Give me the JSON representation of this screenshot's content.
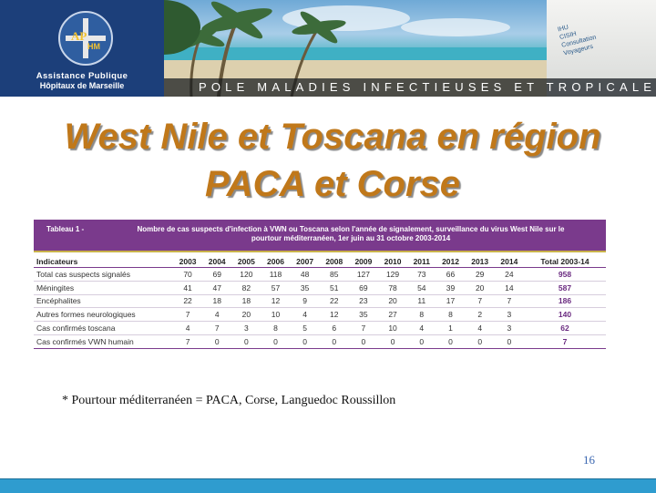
{
  "header": {
    "org_line1": "Assistance Publique",
    "org_line2": "Hôpitaux de Marseille",
    "logo_text_ap": "AP",
    "logo_text_hm": "HM",
    "banner": "POLE MALADIES INFECTIEUSES ET TROPICALES",
    "sign_lines": [
      "IHU",
      "CISIH",
      "Consultation",
      "Voyageurs"
    ]
  },
  "title": {
    "line1": "West Nile et Toscana en région",
    "line2": "PACA et Corse"
  },
  "table": {
    "caption_prefix": "Tableau 1 -",
    "caption_line1": "Nombre de cas suspects d'infection à VWN ou Toscana selon l'année de signalement, surveillance du virus West Nile sur le",
    "caption_line2": "pourtour méditerranéen, 1er juin au 31 octobre 2003-2014",
    "columns": [
      "Indicateurs",
      "2003",
      "2004",
      "2005",
      "2006",
      "2007",
      "2008",
      "2009",
      "2010",
      "2011",
      "2012",
      "2013",
      "2014",
      "Total 2003-14"
    ],
    "rows": [
      {
        "label": "Total cas suspects signalés",
        "values": [
          "70",
          "69",
          "120",
          "118",
          "48",
          "85",
          "127",
          "129",
          "73",
          "66",
          "29",
          "24"
        ],
        "total": "958"
      },
      {
        "label": "Méningites",
        "values": [
          "41",
          "47",
          "82",
          "57",
          "35",
          "51",
          "69",
          "78",
          "54",
          "39",
          "20",
          "14"
        ],
        "total": "587"
      },
      {
        "label": "Encéphalites",
        "values": [
          "22",
          "18",
          "18",
          "12",
          "9",
          "22",
          "23",
          "20",
          "11",
          "17",
          "7",
          "7"
        ],
        "total": "186"
      },
      {
        "label": "Autres formes neurologiques",
        "values": [
          "7",
          "4",
          "20",
          "10",
          "4",
          "12",
          "35",
          "27",
          "8",
          "8",
          "2",
          "3"
        ],
        "total": "140"
      },
      {
        "label": "Cas confirmés toscana",
        "values": [
          "4",
          "7",
          "3",
          "8",
          "5",
          "6",
          "7",
          "10",
          "4",
          "1",
          "4",
          "3"
        ],
        "total": "62"
      },
      {
        "label": "Cas confirmés VWN humain",
        "values": [
          "7",
          "0",
          "0",
          "0",
          "0",
          "0",
          "0",
          "0",
          "0",
          "0",
          "0",
          "0"
        ],
        "total": "7"
      }
    ]
  },
  "footnote": "* Pourtour méditerranéen = PACA, Corse, Languedoc Roussillon",
  "page_number": "16",
  "colors": {
    "title": "#c0781a",
    "table_header": "#7a3a8c",
    "bottom_bar": "#2f9ccf",
    "header_panel": "#1c3f7a"
  }
}
